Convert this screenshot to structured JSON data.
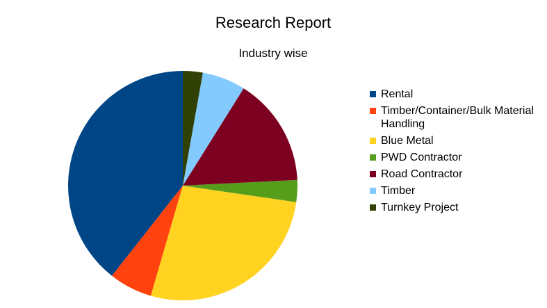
{
  "chart_data": {
    "type": "pie",
    "title": "Research Report",
    "subtitle": "Industry wise",
    "categories": [
      "Rental",
      "Timber/Container/Bulk Material Handling",
      "Blue Metal",
      "PWD Contractor",
      "Road Contractor",
      "Timber",
      "Turnkey Project"
    ],
    "values": [
      39.4,
      6.1,
      27.2,
      3.1,
      15.3,
      6.1,
      2.8
    ],
    "colors": [
      "#004586",
      "#ff420e",
      "#ffd320",
      "#579d1c",
      "#7e0021",
      "#83caff",
      "#314004"
    ],
    "legend": "right"
  }
}
